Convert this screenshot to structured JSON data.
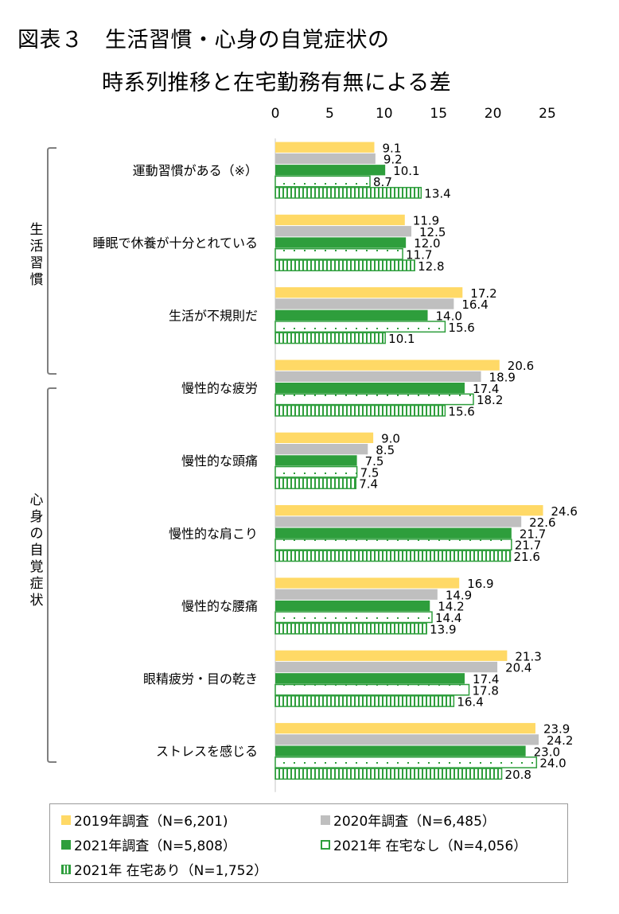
{
  "title_line1": "図表３　生活習慣・心身の自覚症状の",
  "title_line2": "時系列推移と在宅勤務有無による差",
  "colors": {
    "y2019": "#FFD966",
    "y2020": "#BFBFBF",
    "y2021": "#2E9E3C",
    "pattern_green": "#2E9E3C"
  },
  "group_labels": {
    "habits": "生活習慣",
    "symptoms": "心身の自覚症状"
  },
  "chart_data": {
    "type": "bar",
    "orientation": "horizontal",
    "xlim": [
      0,
      25
    ],
    "xticks": [
      "0",
      "5",
      "10",
      "15",
      "20",
      "25"
    ],
    "categories": [
      "運動習慣がある（※）",
      "睡眠で休養が十分とれている",
      "生活が不規則だ",
      "慢性的な疲労",
      "慢性的な頭痛",
      "慢性的な肩こり",
      "慢性的な腰痛",
      "眼精疲労・目の乾き",
      "ストレスを感じる"
    ],
    "series": [
      {
        "name": "2019年調査（N=6,201)",
        "style": "solid-yellow",
        "values": [
          9.1,
          11.9,
          17.2,
          20.6,
          9.0,
          24.6,
          16.9,
          21.3,
          23.9
        ],
        "labels": [
          "9.1",
          "11.9",
          "17.2",
          "20.6",
          "9.0",
          "24.6",
          "16.9",
          "21.3",
          "23.9"
        ]
      },
      {
        "name": "2020年調査（N=6,485）",
        "style": "solid-gray",
        "values": [
          9.2,
          12.5,
          16.4,
          18.9,
          8.5,
          22.6,
          14.9,
          20.4,
          24.2
        ],
        "labels": [
          "9.2",
          "12.5",
          "16.4",
          "18.9",
          "8.5",
          "22.6",
          "14.9",
          "20.4",
          "24.2"
        ]
      },
      {
        "name": "2021年調査（N=5,808）",
        "style": "solid-green",
        "values": [
          10.1,
          12.0,
          14.0,
          17.4,
          7.5,
          21.7,
          14.2,
          17.4,
          23.0
        ],
        "labels": [
          "10.1",
          "12.0",
          "14.0",
          "17.4",
          "7.5",
          "21.7",
          "14.2",
          "17.4",
          "23.0"
        ]
      },
      {
        "name": "2021年 在宅なし（N=4,056）",
        "style": "dotted-green",
        "values": [
          8.7,
          11.7,
          15.6,
          18.2,
          7.5,
          21.7,
          14.4,
          17.8,
          24.0
        ],
        "labels": [
          "8.7",
          "11.7",
          "15.6",
          "18.2",
          "7.5",
          "21.7",
          "14.4",
          "17.8",
          "24.0"
        ]
      },
      {
        "name": "2021年 在宅あり（N=1,752）",
        "style": "striped-green",
        "values": [
          13.4,
          12.8,
          10.1,
          15.6,
          7.4,
          21.6,
          13.9,
          16.4,
          20.8
        ],
        "labels": [
          "13.4",
          "12.8",
          "10.1",
          "15.6",
          "7.4",
          "21.6",
          "13.9",
          "16.4",
          "20.8"
        ]
      }
    ],
    "legend_position": "bottom",
    "grid": false
  }
}
